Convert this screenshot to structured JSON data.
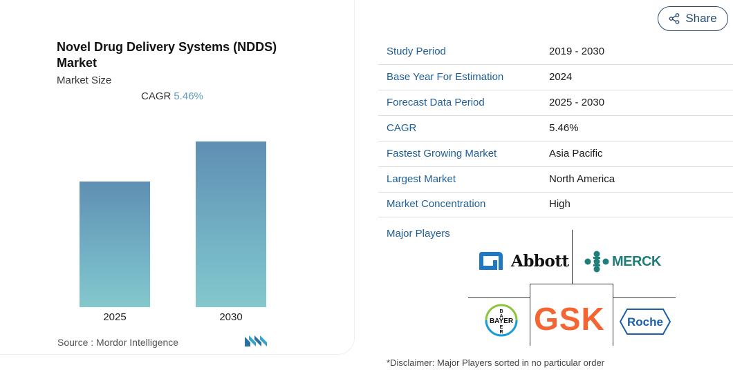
{
  "chart": {
    "title": "Novel Drug Delivery Systems (NDDS) Market",
    "subtitle": "Market Size",
    "cagr_label": "CAGR",
    "cagr_value": "5.46%",
    "source": "Source :  Mordor Intelligence"
  },
  "chart_data": {
    "type": "bar",
    "categories": [
      "2025",
      "2030"
    ],
    "values": [
      0.76,
      1.0
    ],
    "title": "Novel Drug Delivery Systems (NDDS) Market",
    "subtitle": "Market Size",
    "xlabel": "",
    "ylabel": "",
    "colors": [
      "#5f8fb3",
      "#84c8cc"
    ]
  },
  "share": {
    "label": "Share"
  },
  "table": [
    {
      "key": "Study Period",
      "value": "2019 - 2030"
    },
    {
      "key": "Base Year For Estimation",
      "value": "2024"
    },
    {
      "key": "Forecast Data Period",
      "value": "2025 - 2030"
    },
    {
      "key": "CAGR",
      "value": "5.46%"
    },
    {
      "key": "Fastest Growing Market",
      "value": "Asia Pacific"
    },
    {
      "key": "Largest Market",
      "value": "North America"
    },
    {
      "key": "Market Concentration",
      "value": "High"
    }
  ],
  "players": {
    "label": "Major Players",
    "logos": [
      "Abbott",
      "MERCK",
      "BAYER",
      "GSK",
      "Roche"
    ]
  },
  "disclaimer": "*Disclaimer: Major Players sorted in no particular order"
}
